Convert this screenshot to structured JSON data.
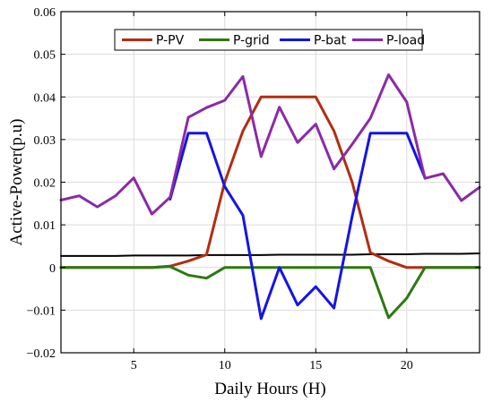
{
  "chart_data": {
    "type": "line",
    "xlabel": "Daily Hours (H)",
    "ylabel": "Active-Power(p.u)",
    "xlim": [
      1,
      24
    ],
    "ylim": [
      -0.02,
      0.06
    ],
    "x_ticks": [
      5,
      10,
      15,
      20
    ],
    "y_ticks": [
      -0.02,
      -0.01,
      0,
      0.01,
      0.02,
      0.03,
      0.04,
      0.05,
      0.06
    ],
    "y_tick_labels": [
      "−0.02",
      "−0.01",
      "0",
      "0.01",
      "0.02",
      "0.03",
      "0.04",
      "0.05",
      "0.06"
    ],
    "grid": true,
    "legend_position": "top",
    "x": [
      1,
      2,
      3,
      4,
      5,
      6,
      7,
      8,
      9,
      10,
      11,
      12,
      13,
      14,
      15,
      16,
      17,
      18,
      19,
      20,
      21,
      22,
      23,
      24
    ],
    "series": [
      {
        "name": "P-PV",
        "color": "#b22d12",
        "values": [
          0,
          0,
          0,
          0,
          0,
          0,
          0.0003,
          0.0015,
          0.003,
          0.02,
          0.032,
          0.04,
          0.04,
          0.04,
          0.04,
          0.032,
          0.02,
          0.0035,
          0.0015,
          0,
          0,
          0,
          0,
          0
        ]
      },
      {
        "name": "P-grid",
        "color": "#2a7a0f",
        "values": [
          0,
          0,
          0,
          0,
          0,
          0,
          0.0002,
          -0.0018,
          -0.0025,
          0,
          0,
          0,
          0,
          0,
          0,
          0,
          0,
          0,
          -0.0118,
          -0.0072,
          0,
          0,
          0,
          0
        ]
      },
      {
        "name": "P-bat",
        "color": "#1414e6",
        "values": [
          null,
          null,
          null,
          null,
          null,
          null,
          0.016,
          0.0315,
          0.0315,
          0.019,
          0.0122,
          -0.012,
          0,
          -0.0088,
          -0.0045,
          -0.0095,
          0.012,
          0.0315,
          0.0315,
          0.0315,
          0.021,
          null,
          null,
          null
        ]
      },
      {
        "name": "P-load",
        "color": "#8b2aa8",
        "values": [
          0.0158,
          0.0168,
          0.0142,
          0.0168,
          0.021,
          0.0125,
          0.0165,
          0.0352,
          0.0375,
          0.0392,
          0.0448,
          0.026,
          0.0376,
          0.0293,
          0.0336,
          0.0231,
          0.0289,
          0.035,
          0.0452,
          0.0388,
          0.0209,
          0.022,
          0.0157,
          0.0188
        ]
      },
      {
        "color": "#000000",
        "values": [
          0.0027,
          0.0027,
          0.0027,
          0.0027,
          0.0028,
          0.0028,
          0.0028,
          0.0028,
          0.0029,
          0.0029,
          0.0029,
          0.0029,
          0.003,
          0.003,
          0.003,
          0.003,
          0.003,
          0.0031,
          0.0031,
          0.0031,
          0.0032,
          0.0032,
          0.0032,
          0.0033
        ]
      }
    ]
  }
}
